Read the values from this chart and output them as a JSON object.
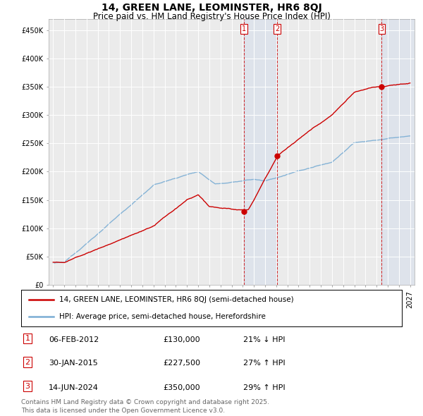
{
  "title": "14, GREEN LANE, LEOMINSTER, HR6 8QJ",
  "subtitle": "Price paid vs. HM Land Registry's House Price Index (HPI)",
  "ylim": [
    0,
    470000
  ],
  "yticks": [
    0,
    50000,
    100000,
    150000,
    200000,
    250000,
    300000,
    350000,
    400000,
    450000
  ],
  "ytick_labels": [
    "£0",
    "£50K",
    "£100K",
    "£150K",
    "£200K",
    "£250K",
    "£300K",
    "£350K",
    "£400K",
    "£450K"
  ],
  "background_color": "#ffffff",
  "plot_bg_color": "#ebebeb",
  "grid_color": "#ffffff",
  "sale_color": "#cc0000",
  "hpi_color": "#7aadd4",
  "transactions": [
    {
      "label": "1",
      "date": "06-FEB-2012",
      "price": 130000,
      "hpi_relation": "21% ↓ HPI",
      "x": 2012.09
    },
    {
      "label": "2",
      "date": "30-JAN-2015",
      "price": 227500,
      "hpi_relation": "27% ↑ HPI",
      "x": 2015.08
    },
    {
      "label": "3",
      "date": "14-JUN-2024",
      "price": 350000,
      "hpi_relation": "29% ↑ HPI",
      "x": 2024.45
    }
  ],
  "legend_sale_label": "14, GREEN LANE, LEOMINSTER, HR6 8QJ (semi-detached house)",
  "legend_hpi_label": "HPI: Average price, semi-detached house, Herefordshire",
  "footer": "Contains HM Land Registry data © Crown copyright and database right 2025.\nThis data is licensed under the Open Government Licence v3.0.",
  "title_fontsize": 10,
  "subtitle_fontsize": 8.5,
  "tick_fontsize": 7,
  "legend_fontsize": 7.5,
  "table_fontsize": 8,
  "footer_fontsize": 6.5
}
